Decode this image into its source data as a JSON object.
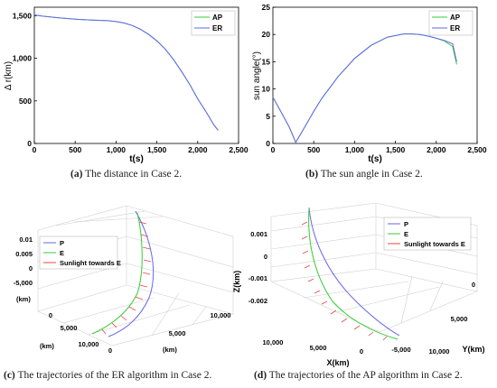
{
  "captions": {
    "a": {
      "tag": "(a)",
      "text": "The distance in Case 2."
    },
    "b": {
      "tag": "(b)",
      "text": "The sun angle in Case 2."
    },
    "c": {
      "tag": "(c)",
      "text": "The trajectories of the ER algorithm in Case 2."
    },
    "d": {
      "tag": "(d)",
      "text": "The trajectories of the AP algorithm in Case 2."
    }
  },
  "colors": {
    "AP": "#33cc33",
    "ER": "#6666ee",
    "P": "#6666ee",
    "E": "#33cc33",
    "sun": "#ee4444",
    "axis": "#000000",
    "box": "#cccccc"
  },
  "chart_data": [
    {
      "type": "line",
      "xlabel": "t(s)",
      "ylabel": "Δ r(km)",
      "xlim": [
        0,
        2500
      ],
      "ylim": [
        0,
        1600
      ],
      "xticks": [
        0,
        500,
        1000,
        1500,
        2000,
        2500
      ],
      "xtick_labels": [
        "0",
        "500",
        "1,000",
        "1,500",
        "2,000",
        "2,500"
      ],
      "yticks": [
        0,
        500,
        1000,
        1500
      ],
      "ytick_labels": [
        "0",
        "500",
        "1,000",
        "1,500"
      ],
      "legend": "top-right",
      "series": [
        {
          "name": "AP",
          "x": [
            0,
            100,
            300,
            500,
            700,
            900,
            1000,
            1100,
            1200,
            1300,
            1400,
            1500,
            1600,
            1700,
            1800,
            1900,
            2000,
            2100,
            2200,
            2250
          ],
          "y": [
            1510,
            1495,
            1475,
            1460,
            1450,
            1442,
            1432,
            1415,
            1385,
            1340,
            1280,
            1205,
            1110,
            990,
            850,
            695,
            525,
            375,
            215,
            155
          ]
        },
        {
          "name": "ER",
          "x": [
            0,
            100,
            300,
            500,
            700,
            900,
            1000,
            1100,
            1200,
            1300,
            1400,
            1500,
            1600,
            1700,
            1800,
            1900,
            2000,
            2100,
            2200,
            2250
          ],
          "y": [
            1510,
            1495,
            1475,
            1460,
            1450,
            1442,
            1432,
            1415,
            1385,
            1340,
            1280,
            1205,
            1110,
            990,
            850,
            695,
            525,
            375,
            215,
            155
          ]
        }
      ]
    },
    {
      "type": "line",
      "xlabel": "t(s)",
      "ylabel": "sun angle(°)",
      "xlim": [
        0,
        2500
      ],
      "ylim": [
        0,
        25
      ],
      "xticks": [
        0,
        500,
        1000,
        1500,
        2000,
        2500
      ],
      "xtick_labels": [
        "0",
        "500",
        "1,000",
        "1,500",
        "2,000",
        "2,500"
      ],
      "yticks": [
        0,
        5,
        10,
        15,
        20,
        25
      ],
      "ytick_labels": [
        "0",
        "5",
        "10",
        "15",
        "20",
        "25"
      ],
      "legend": "top-right",
      "series": [
        {
          "name": "AP",
          "x": [
            0,
            100,
            200,
            280,
            400,
            500,
            600,
            800,
            1000,
            1200,
            1400,
            1600,
            1700,
            1800,
            1900,
            2000,
            2100,
            2200,
            2250
          ],
          "y": [
            8.5,
            5.8,
            3.0,
            0.2,
            3.3,
            5.9,
            8.3,
            12.3,
            15.6,
            18.0,
            19.5,
            20.1,
            20.1,
            20.0,
            19.7,
            19.3,
            18.8,
            17.8,
            14.5
          ]
        },
        {
          "name": "ER",
          "x": [
            0,
            100,
            200,
            280,
            400,
            500,
            600,
            800,
            1000,
            1200,
            1400,
            1600,
            1700,
            1800,
            1900,
            2000,
            2100,
            2200,
            2250
          ],
          "y": [
            8.5,
            5.8,
            3.0,
            0.2,
            3.3,
            5.9,
            8.3,
            12.3,
            15.6,
            18.0,
            19.5,
            20.1,
            20.1,
            20.0,
            19.7,
            19.3,
            18.9,
            18.3,
            15.0
          ]
        }
      ]
    },
    {
      "type": "line3d",
      "legend": "top-left",
      "axis_labels": {
        "x": "(km)",
        "y": "(km)",
        "z": "(km)"
      },
      "tick_labels": {
        "z": [
          "0.01",
          "0.005",
          "0",
          "-5,000"
        ],
        "x": [
          "0",
          "5,000",
          "10,000"
        ],
        "y": [
          "0",
          "5,000",
          "10,000"
        ]
      },
      "series": [
        {
          "name": "P"
        },
        {
          "name": "E"
        },
        {
          "name": "Sunlight towards E"
        }
      ]
    },
    {
      "type": "line3d",
      "legend": "top-right",
      "axis_labels": {
        "x": "X(km)",
        "y": "Y(km)",
        "z": "Z(km)"
      },
      "tick_labels": {
        "z": [
          "0.001",
          "0",
          "-0.001",
          "-0.002"
        ],
        "x": [
          "10,000",
          "5,000",
          "0",
          "-5,000"
        ],
        "y": [
          "0",
          "5,000",
          "10,000"
        ]
      },
      "series": [
        {
          "name": "P"
        },
        {
          "name": "E"
        },
        {
          "name": "Sunlight towards E"
        }
      ]
    }
  ]
}
